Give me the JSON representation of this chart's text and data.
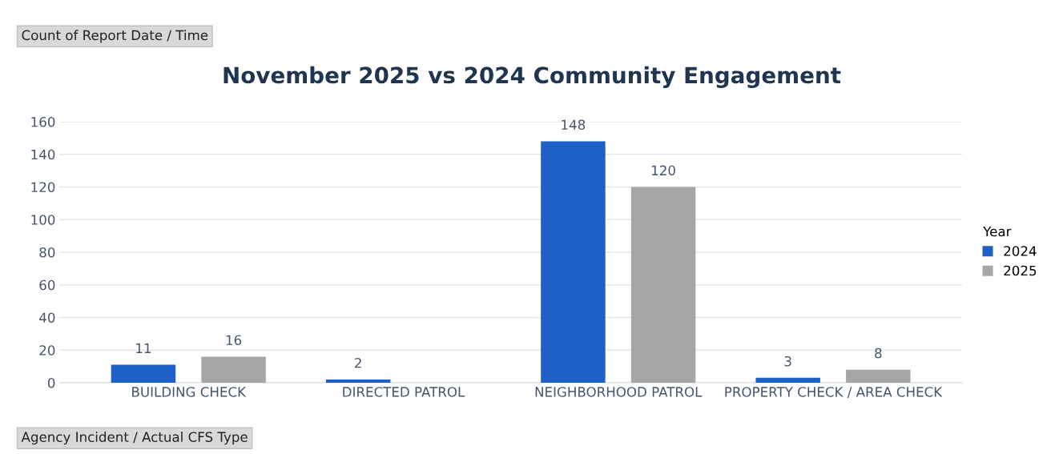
{
  "chart_data": {
    "type": "bar",
    "title": "November 2025 vs 2024 Community Engagement",
    "categories": [
      "BUILDING CHECK",
      "DIRECTED PATROL",
      "NEIGHBORHOOD PATROL",
      "PROPERTY CHECK / AREA CHECK"
    ],
    "series": [
      {
        "name": "2024",
        "color": "#1f5fc8",
        "values": [
          11,
          2,
          148,
          3
        ]
      },
      {
        "name": "2025",
        "color": "#a6a6a6",
        "values": [
          16,
          null,
          120,
          8
        ]
      }
    ],
    "ylim": [
      0,
      160
    ],
    "yticks": [
      0,
      20,
      40,
      60,
      80,
      100,
      120,
      140,
      160
    ],
    "grid": "y",
    "legend": "right",
    "legend_title": "Year",
    "data_labels": true,
    "annotations": [
      "Count of Report Date / Time",
      "Agency Incident / Actual CFS Type"
    ]
  }
}
